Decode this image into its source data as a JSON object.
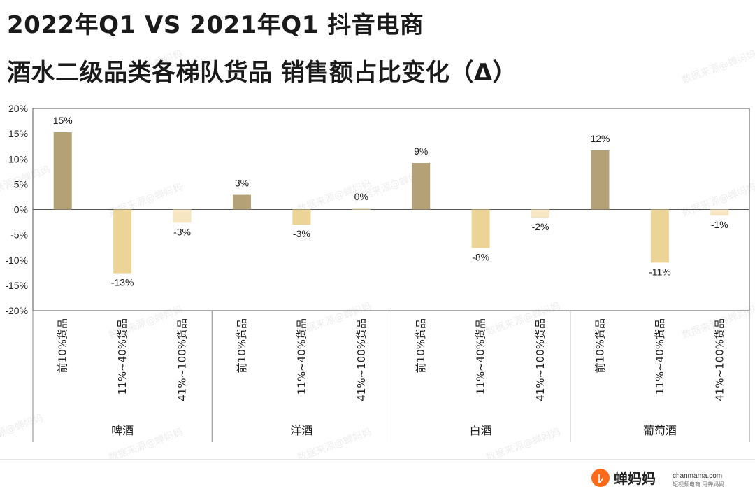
{
  "title_line1": "2022年Q1 VS 2021年Q1 抖音电商",
  "title_line2": "酒水二级品类各梯队货品 销售额占比变化（Δ）",
  "watermark": "数据来源@蝉妈妈",
  "logo": {
    "name": "蝉妈妈",
    "domain": "chanmama.com",
    "tagline": "短视频电商 用蝉妈妈"
  },
  "colors": {
    "top_tier": "#b4a276",
    "mid_tier": "#ecd396",
    "low_tier": "#f6e6c2",
    "grid": "#333333"
  },
  "chart_data": {
    "type": "bar",
    "ylim": [
      -20,
      20
    ],
    "yticks": [
      20,
      15,
      10,
      5,
      0,
      -5,
      -10,
      -15,
      -20
    ],
    "ytick_labels": [
      "20%",
      "15%",
      "10%",
      "5%",
      "0%",
      "-5%",
      "-10%",
      "-15%",
      "-20%"
    ],
    "groups": [
      {
        "name": "啤酒",
        "bars": [
          {
            "category": "前10%货品",
            "value": 15.3,
            "label": "15%",
            "tier": "top_tier"
          },
          {
            "category": "11%~40%货品",
            "value": -12.6,
            "label": "-13%",
            "tier": "mid_tier"
          },
          {
            "category": "41%~100%货品",
            "value": -2.6,
            "label": "-3%",
            "tier": "low_tier"
          }
        ]
      },
      {
        "name": "洋酒",
        "bars": [
          {
            "category": "前10%货品",
            "value": 2.9,
            "label": "3%",
            "tier": "top_tier"
          },
          {
            "category": "11%~40%货品",
            "value": -3.0,
            "label": "-3%",
            "tier": "mid_tier"
          },
          {
            "category": "41%~100%货品",
            "value": 0.2,
            "label": "0%",
            "tier": "low_tier"
          }
        ]
      },
      {
        "name": "白酒",
        "bars": [
          {
            "category": "前10%货品",
            "value": 9.2,
            "label": "9%",
            "tier": "top_tier"
          },
          {
            "category": "11%~40%货品",
            "value": -7.6,
            "label": "-8%",
            "tier": "mid_tier"
          },
          {
            "category": "41%~100%货品",
            "value": -1.6,
            "label": "-2%",
            "tier": "low_tier"
          }
        ]
      },
      {
        "name": "葡萄酒",
        "bars": [
          {
            "category": "前10%货品",
            "value": 11.7,
            "label": "12%",
            "tier": "top_tier"
          },
          {
            "category": "11%~40%货品",
            "value": -10.5,
            "label": "-11%",
            "tier": "mid_tier"
          },
          {
            "category": "41%~100%货品",
            "value": -1.2,
            "label": "-1%",
            "tier": "low_tier"
          }
        ]
      }
    ]
  }
}
